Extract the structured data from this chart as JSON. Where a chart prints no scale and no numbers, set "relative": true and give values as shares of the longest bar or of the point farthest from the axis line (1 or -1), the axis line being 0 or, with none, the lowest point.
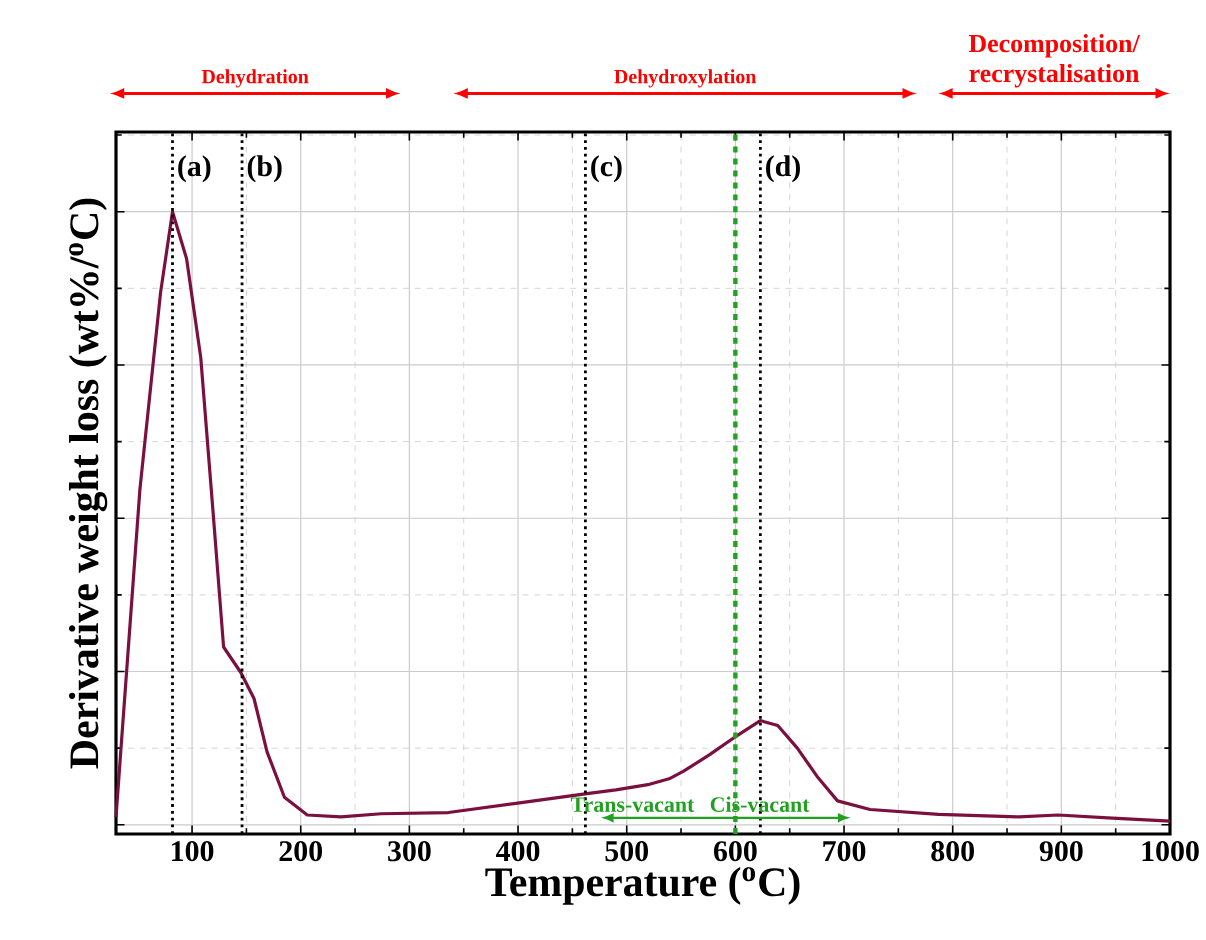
{
  "chart_data": {
    "type": "line",
    "relative": true,
    "xlabel": "Temperature ($^{o}$C)",
    "ylabel": "Derivative weight loss (wt%/$^{o}$C)",
    "xlim": [
      30,
      1000
    ],
    "xticks": [
      100,
      200,
      300,
      400,
      500,
      600,
      700,
      800,
      900,
      1000
    ],
    "grid": true,
    "tick_labels": "x",
    "series": [
      {
        "color": "#7b1040",
        "x": [
          30,
          52,
          71,
          82,
          95,
          108,
          120,
          129,
          145,
          157,
          169,
          185,
          206,
          237,
          274,
          336,
          398,
          460,
          490,
          521,
          539,
          552,
          576,
          602,
          623,
          639,
          657,
          676,
          694,
          724,
          787,
          861,
          897,
          947,
          1000
        ],
        "values": [
          0.013,
          0.547,
          0.868,
          1.0,
          0.923,
          0.762,
          0.495,
          0.29,
          0.248,
          0.206,
          0.119,
          0.045,
          0.016,
          0.013,
          0.018,
          0.02,
          0.035,
          0.05,
          0.057,
          0.066,
          0.075,
          0.087,
          0.114,
          0.146,
          0.17,
          0.162,
          0.125,
          0.077,
          0.039,
          0.025,
          0.017,
          0.013,
          0.016,
          0.011,
          0.006
        ]
      }
    ],
    "ref_lines": [
      {
        "axis": "x",
        "value": 82,
        "label": "(a)",
        "color": "#000000",
        "line_style": "dotted"
      },
      {
        "axis": "x",
        "value": 146,
        "label": "(b)",
        "color": "#000000",
        "line_style": "dotted"
      },
      {
        "axis": "x",
        "value": 462,
        "label": "(c)",
        "color": "#000000",
        "line_style": "dotted"
      },
      {
        "axis": "x",
        "value": 623,
        "label": "(d)",
        "color": "#000000",
        "line_style": "dotted"
      },
      {
        "axis": "x",
        "value": 600,
        "color": "#22a022",
        "line_style": "dashed"
      }
    ],
    "annotations": [
      "Dehydration",
      "Dehydroxylation",
      "Decomposition/ recrystalisation",
      "Trans-vacant",
      "Cis-vacant"
    ]
  }
}
